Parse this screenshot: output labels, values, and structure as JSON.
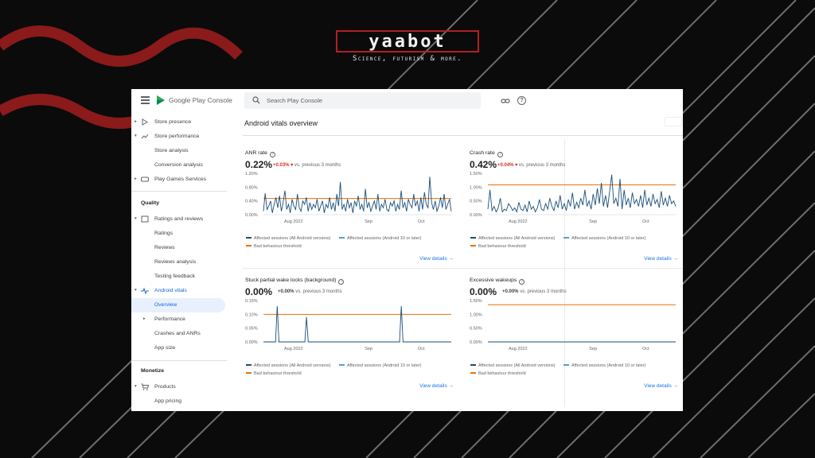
{
  "brand": {
    "logo_text": "yaabot",
    "tagline": "Science, futurism & more."
  },
  "app": {
    "title": "Google Play Console",
    "search_placeholder": "Search Play Console",
    "icons": [
      "menu-icon",
      "play-console-logo",
      "search-icon",
      "link-icon",
      "help-icon"
    ]
  },
  "sidebar": {
    "items": [
      {
        "label": "Store presence",
        "icon": "play-icon",
        "expandable": true
      },
      {
        "label": "Store performance",
        "icon": "trend-icon",
        "expandable": true,
        "expanded": true
      },
      {
        "label": "Store analysis"
      },
      {
        "label": "Conversion analysis"
      },
      {
        "label": "Play Games Services",
        "icon": "gamepad-icon",
        "expandable": true
      }
    ],
    "quality_heading": "Quality",
    "quality_items": [
      {
        "label": "Ratings and reviews",
        "icon": "ratings-icon",
        "expandable": true,
        "expanded": true
      },
      {
        "label": "Ratings"
      },
      {
        "label": "Reviews"
      },
      {
        "label": "Reviews analysis"
      },
      {
        "label": "Testing feedback"
      },
      {
        "label": "Android vitals",
        "icon": "vitals-icon",
        "expandable": true,
        "expanded": true
      },
      {
        "label": "Overview",
        "selected": true
      },
      {
        "label": "Performance",
        "expandable": true
      },
      {
        "label": "Crashes and ANRs"
      },
      {
        "label": "App size"
      }
    ],
    "monetize_heading": "Monetize",
    "monetize_items": [
      {
        "label": "Products",
        "icon": "cart-icon",
        "expandable": true,
        "expanded": true
      },
      {
        "label": "App pricing"
      }
    ]
  },
  "main": {
    "page_title": "Android vitals overview"
  },
  "cards": [
    {
      "title": "ANR rate",
      "value": "0.22%",
      "delta": "+0.03%",
      "delta_arrow": "▾",
      "delta_color": "#d93025",
      "comparison": "vs. previous 3 months",
      "link": "View details →"
    },
    {
      "title": "Crash rate",
      "value": "0.42%",
      "delta": "+0.04%",
      "delta_arrow": "▾",
      "delta_color": "#d93025",
      "comparison": "vs. previous 3 months",
      "link": "View details →"
    },
    {
      "title": "Stuck partial wake locks (background)",
      "value": "0.00%",
      "delta": "+0.00%",
      "delta_arrow": "",
      "delta_color": "#3c4043",
      "comparison": "vs. previous 3 months",
      "link": "View details →"
    },
    {
      "title": "Excessive wakeups",
      "value": "0.00%",
      "delta": "+0.00%",
      "delta_arrow": "",
      "delta_color": "#3c4043",
      "comparison": "vs. previous 3 months",
      "link": "View details →"
    }
  ],
  "legend": {
    "all_versions": "Affected sessions (All Android versions)",
    "android10": "Affected sessions (Android 10 or later)",
    "threshold": "Bad behaviour threshold"
  },
  "colors": {
    "series_all": "#1a4d7a",
    "series_10": "#5a9bd4",
    "threshold": "#e8710a",
    "active_nav_bg": "#e8f0fe",
    "accent": "#1a73e8"
  },
  "chart_data": [
    {
      "type": "line",
      "title": "ANR rate",
      "ylim": [
        0,
        1.2
      ],
      "yticks": [
        "1.20%",
        "0.80%",
        "0.40%",
        "0.00%"
      ],
      "xticks": [
        "Aug 2022",
        "Sep",
        "Oct"
      ],
      "threshold": 0.47,
      "series": [
        {
          "name": "Affected sessions (All Android versions)",
          "values": [
            0.1,
            0.62,
            0.15,
            0.25,
            0.4,
            0.05,
            0.3,
            0.5,
            0.2,
            0.55,
            0.1,
            0.35,
            0.7,
            0.15,
            0.3,
            0.05,
            0.45,
            0.25,
            0.15,
            0.6,
            0.2,
            0.1,
            0.4,
            0.3,
            0.5,
            0.1,
            0.35,
            0.15,
            0.3,
            0.2,
            0.45,
            0.1,
            0.25,
            0.4,
            0.05,
            0.3,
            0.2,
            0.5,
            0.15,
            0.35,
            0.1,
            0.6,
            0.25,
            0.95,
            0.15,
            0.3,
            0.1,
            0.45,
            0.2,
            0.35,
            0.05,
            0.4,
            0.25,
            0.55,
            0.15,
            0.3,
            0.1,
            0.75,
            0.2,
            0.35,
            0.1,
            0.25,
            0.4,
            0.15,
            0.6,
            0.1,
            0.3,
            0.2,
            0.45,
            0.15,
            0.1,
            0.35,
            0.25,
            0.4,
            0.1,
            0.3,
            0.15,
            0.7,
            0.2,
            0.35,
            0.1,
            0.45,
            0.3,
            0.2,
            0.6,
            0.25,
            0.4,
            0.1,
            0.5,
            0.15,
            0.65,
            0.3,
            0.2,
            1.1,
            0.35,
            0.15,
            0.4,
            0.1,
            0.25,
            0.5,
            0.2,
            0.6,
            0.15,
            0.3,
            0.45,
            0.1
          ]
        }
      ]
    },
    {
      "type": "line",
      "title": "Crash rate",
      "ylim": [
        0,
        1.5
      ],
      "yticks": [
        "1.50%",
        "1.00%",
        "0.50%",
        "0.00%"
      ],
      "xticks": [
        "Aug 2022",
        "Sep",
        "Oct"
      ],
      "threshold": 1.08,
      "series": [
        {
          "name": "Affected sessions (All Android versions)",
          "values": [
            0.2,
            0.9,
            0.15,
            0.3,
            0.1,
            0.25,
            0.6,
            0.1,
            0.2,
            0.15,
            0.4,
            0.3,
            0.15,
            0.25,
            0.1,
            0.45,
            0.2,
            0.15,
            0.35,
            0.1,
            0.5,
            0.2,
            0.3,
            0.1,
            0.25,
            0.55,
            0.2,
            0.15,
            0.4,
            0.2,
            0.6,
            0.3,
            0.15,
            0.5,
            0.25,
            0.7,
            0.2,
            0.4,
            0.15,
            0.55,
            0.3,
            0.8,
            0.2,
            0.45,
            0.25,
            0.6,
            0.35,
            0.9,
            0.3,
            0.5,
            0.2,
            0.75,
            0.35,
            0.95,
            0.4,
            1.15,
            0.3,
            0.7,
            0.25,
            0.85,
            1.45,
            0.4,
            0.6,
            0.3,
            1.3,
            0.2,
            0.9,
            0.35,
            0.6,
            0.25,
            0.8,
            0.4,
            0.55,
            0.3,
            0.7,
            0.25,
            0.9,
            0.35,
            0.6,
            0.3,
            0.75,
            0.4,
            0.55,
            0.25,
            0.85,
            0.35,
            0.6,
            0.3,
            0.7,
            0.4,
            0.5,
            0.3
          ]
        }
      ]
    },
    {
      "type": "line",
      "title": "Stuck partial wake locks (background)",
      "ylim": [
        0,
        0.15
      ],
      "yticks": [
        "0.15%",
        "0.10%",
        "0.05%",
        "0.00%"
      ],
      "xticks": [
        "Aug 2022",
        "Sep",
        "Oct"
      ],
      "threshold": 0.1,
      "series": [
        {
          "name": "Affected sessions (All Android versions)",
          "values": [
            0,
            0,
            0,
            0,
            0,
            0,
            0,
            0,
            0.13,
            0,
            0,
            0,
            0,
            0,
            0,
            0,
            0,
            0,
            0,
            0,
            0,
            0,
            0,
            0,
            0,
            0.09,
            0,
            0,
            0,
            0,
            0,
            0,
            0,
            0,
            0,
            0,
            0,
            0,
            0,
            0,
            0,
            0,
            0,
            0,
            0,
            0,
            0,
            0,
            0,
            0,
            0,
            0,
            0,
            0,
            0,
            0,
            0,
            0,
            0,
            0,
            0,
            0,
            0,
            0,
            0,
            0,
            0,
            0,
            0,
            0,
            0,
            0,
            0,
            0,
            0,
            0,
            0,
            0,
            0,
            0,
            0.13,
            0,
            0,
            0,
            0,
            0,
            0,
            0,
            0,
            0,
            0,
            0,
            0,
            0,
            0,
            0,
            0,
            0,
            0,
            0,
            0,
            0,
            0,
            0,
            0,
            0,
            0,
            0,
            0,
            0
          ]
        }
      ]
    },
    {
      "type": "line",
      "title": "Excessive wakeups",
      "ylim": [
        0,
        1.5
      ],
      "yticks": [
        "1.50%",
        "1.00%",
        "0.50%",
        "0.00%"
      ],
      "xticks": [
        "Aug 2022",
        "Sep",
        "Oct"
      ],
      "threshold": 1.35,
      "series": [
        {
          "name": "Affected sessions (All Android versions)",
          "values": [
            0,
            0,
            0,
            0,
            0,
            0,
            0,
            0,
            0,
            0,
            0,
            0,
            0,
            0,
            0,
            0,
            0,
            0,
            0,
            0
          ]
        }
      ]
    }
  ]
}
